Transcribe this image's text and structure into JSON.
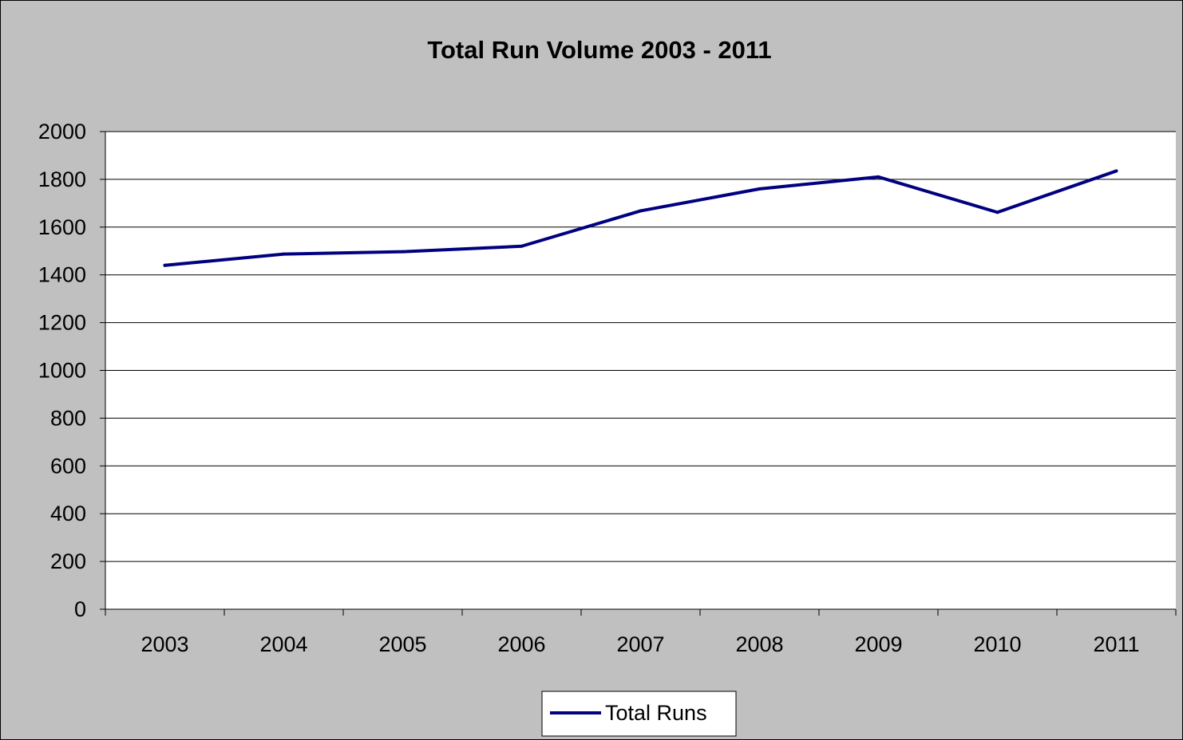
{
  "chart_data": {
    "type": "line",
    "title": "Total Run Volume 2003 - 2011",
    "xlabel": "",
    "ylabel": "",
    "categories": [
      "2003",
      "2004",
      "2005",
      "2006",
      "2007",
      "2008",
      "2009",
      "2010",
      "2011"
    ],
    "series": [
      {
        "name": "Total Runs",
        "color": "#000080",
        "values": [
          1440,
          1487,
          1497,
          1520,
          1668,
          1760,
          1810,
          1662,
          1835
        ]
      }
    ],
    "ylim": [
      0,
      2000
    ],
    "yticks": [
      "0",
      "200",
      "400",
      "600",
      "800",
      "1000",
      "1200",
      "1400",
      "1600",
      "1800",
      "2000"
    ],
    "grid": "horizontal",
    "legend_position": "bottom",
    "colors": {
      "background": "#c0c0c0",
      "plot_area": "#ffffff",
      "gridline": "#000000",
      "series": "#000080"
    }
  }
}
